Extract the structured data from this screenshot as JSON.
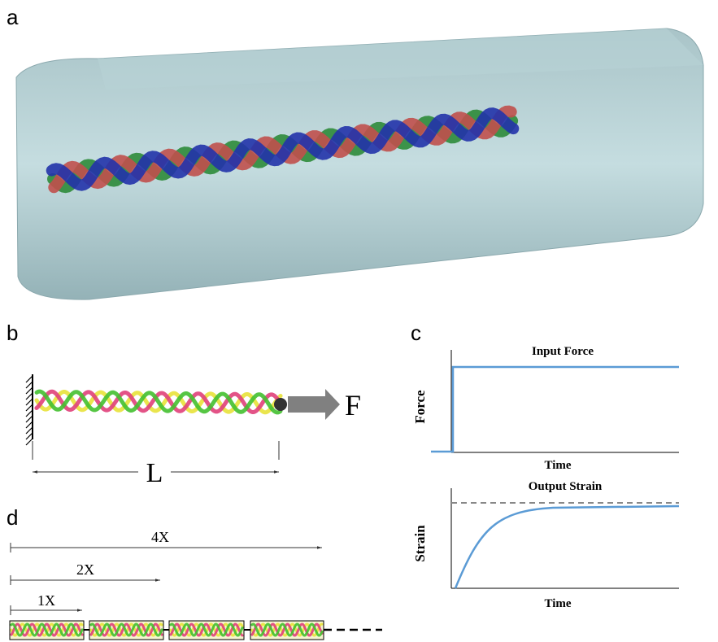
{
  "panels": {
    "a": {
      "label": "a"
    },
    "b": {
      "label": "b",
      "force_label": "F",
      "length_label": "L"
    },
    "c": {
      "label": "c",
      "input_chart": {
        "title": "Input Force",
        "y_label": "Force",
        "x_label": "Time"
      },
      "output_chart": {
        "title": "Output Strain",
        "y_label": "Strain",
        "x_label": "Time"
      }
    },
    "d": {
      "label": "d",
      "scales": [
        "4X",
        "2X",
        "1X"
      ]
    }
  }
}
